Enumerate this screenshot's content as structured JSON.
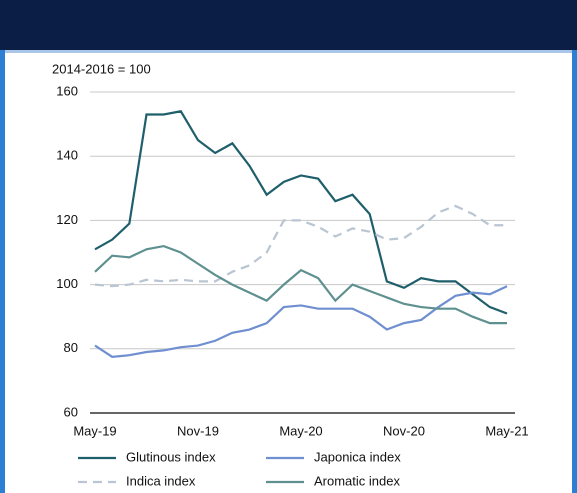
{
  "chart_data": {
    "type": "line",
    "ylabel": "2014-2016 = 100",
    "categories": [
      "May-19",
      null,
      null,
      null,
      null,
      null,
      "Nov-19",
      null,
      null,
      null,
      null,
      null,
      "May-20",
      null,
      null,
      null,
      null,
      null,
      "Nov-20",
      null,
      null,
      null,
      null,
      null,
      "May-21"
    ],
    "series": [
      {
        "name": "Glutinous index",
        "color": "#1f5f6b",
        "dash": false,
        "values": [
          111,
          114,
          119,
          153,
          153,
          154,
          145,
          141,
          144,
          137,
          128,
          132,
          134,
          133,
          126,
          128,
          122,
          101,
          99,
          102,
          101,
          101,
          97,
          93,
          91
        ]
      },
      {
        "name": "Japonica index",
        "color": "#6f8fd0",
        "dash": false,
        "values": [
          81,
          77.5,
          78,
          79,
          79.5,
          80.5,
          81,
          82.5,
          85,
          86,
          88,
          93,
          93.5,
          92.5,
          92.5,
          92.5,
          90,
          86,
          88,
          89,
          93,
          96.5,
          97.5,
          97,
          99.5
        ]
      },
      {
        "name": "Indica index",
        "color": "#b9c5d2",
        "dash": true,
        "values": [
          100,
          99.5,
          100,
          101.5,
          101,
          101.5,
          101,
          101,
          104,
          106,
          110,
          120,
          120,
          118,
          115,
          117.5,
          116.5,
          114,
          114.5,
          118,
          122.5,
          124.5,
          122,
          118.5,
          118.5
        ]
      },
      {
        "name": "Aromatic index",
        "color": "#5f9090",
        "dash": false,
        "values": [
          104,
          109,
          108.5,
          111,
          112,
          110,
          106.5,
          103,
          100,
          97.5,
          95,
          100,
          104.5,
          102,
          95,
          100,
          98,
          96,
          94,
          93,
          92.5,
          92.5,
          90,
          88,
          88
        ]
      }
    ],
    "ylim": [
      60,
      160
    ],
    "yticks": [
      60,
      80,
      100,
      120,
      140,
      160
    ],
    "grid": true,
    "legend": "bottom"
  }
}
